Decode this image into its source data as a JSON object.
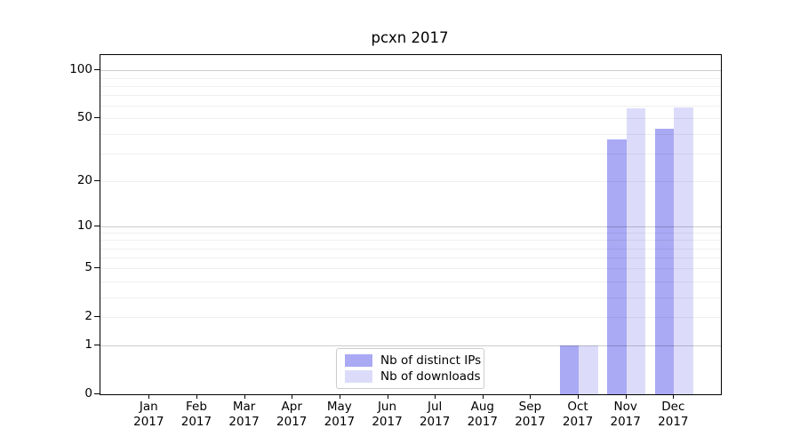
{
  "title": "pcxn 2017",
  "chart_data": {
    "type": "bar",
    "title": "pcxn 2017",
    "categories": [
      "Jan\n2017",
      "Feb\n2017",
      "Mar\n2017",
      "Apr\n2017",
      "May\n2017",
      "Jun\n2017",
      "Jul\n2017",
      "Aug\n2017",
      "Sep\n2017",
      "Oct\n2017",
      "Nov\n2017",
      "Dec\n2017"
    ],
    "series": [
      {
        "name": "Nb of distinct IPs",
        "color": "#a9a9f4",
        "values": [
          0,
          0,
          0,
          0,
          0,
          0,
          0,
          0,
          0,
          1,
          37,
          43
        ]
      },
      {
        "name": "Nb of downloads",
        "color": "#dcdcfa",
        "values": [
          0,
          0,
          0,
          0,
          0,
          0,
          0,
          0,
          0,
          1,
          58,
          59
        ]
      }
    ],
    "xlabel": "",
    "ylabel": "",
    "yscale": "log1p",
    "yticks": [
      0,
      1,
      2,
      5,
      10,
      20,
      50,
      100
    ],
    "ylim": [
      0,
      125
    ],
    "grid": "horizontal",
    "legend_position": "lower-center-inside"
  }
}
